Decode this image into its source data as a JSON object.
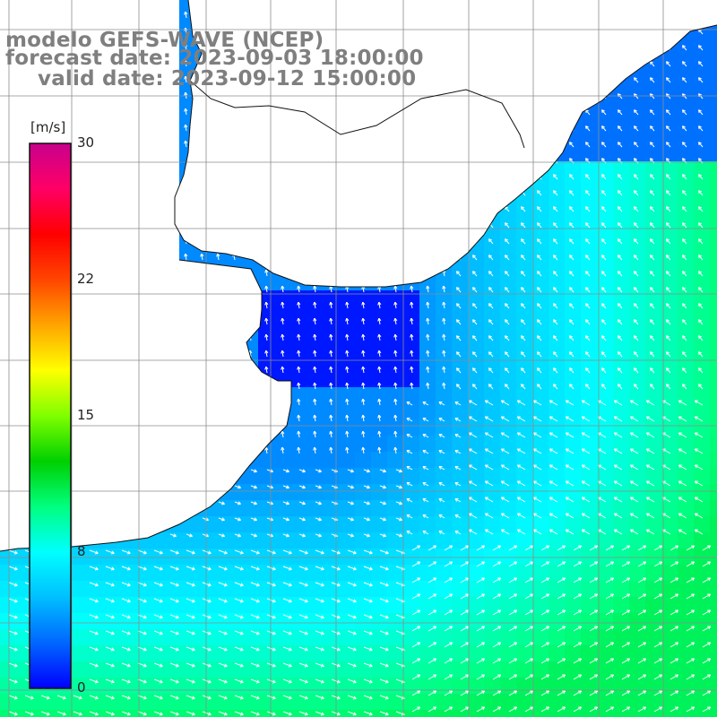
{
  "title": {
    "line1": "modelo GEFS-WAVE (NCEP)",
    "line2": "forecast date: 2023-09-03 18:00:00",
    "line3": "valid date: 2023-09-12 15:00:00"
  },
  "colorbar": {
    "unit_label": "[m/s]",
    "tick_labels": [
      "30",
      "22",
      "15",
      "8",
      "0"
    ],
    "tick_values": [
      30,
      22,
      15,
      8,
      0
    ],
    "min": 0,
    "max": 30,
    "gradient_colors": [
      "#0000ff",
      "#0066ff",
      "#00bfff",
      "#00ffff",
      "#00ff7f",
      "#00d000",
      "#7fff00",
      "#ffff00",
      "#ffa500",
      "#ff4500",
      "#ff0000",
      "#ff0066",
      "#c8008c"
    ]
  },
  "map": {
    "grid_color": "#8c8c8c",
    "coast_color": "#111111",
    "land_color": "#ffffff",
    "arrow_color": "#ffffff",
    "variable": "wind speed and direction"
  },
  "chart_data": {
    "type": "heatmap",
    "title": "modelo GEFS-WAVE (NCEP)",
    "colorbar_unit": "[m/s]",
    "colorbar_ticks": [
      0,
      8,
      15,
      22,
      30
    ],
    "value_range": [
      0,
      30
    ],
    "regions": [
      {
        "name": "south-east offshore",
        "approx_speed_ms": 10
      },
      {
        "name": "open ocean east",
        "approx_speed_ms": 6
      },
      {
        "name": "south-west coastal",
        "approx_speed_ms": 4
      },
      {
        "name": "estuary inner area",
        "approx_speed_ms": 1
      }
    ]
  }
}
